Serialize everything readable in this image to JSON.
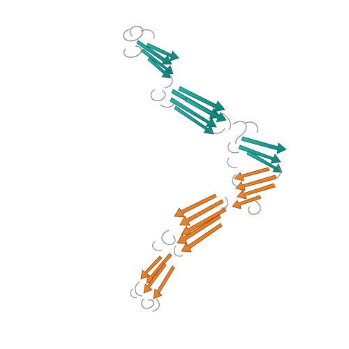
{
  "image": {
    "background": "#ffffff"
  },
  "protein": {
    "chains": [
      {
        "name": "",
        "color": "#1aa39a",
        "domains": 3
      },
      {
        "name": "",
        "color": "#f08a2a",
        "domains": 3
      }
    ],
    "coil_color": "#8a8a8a"
  }
}
